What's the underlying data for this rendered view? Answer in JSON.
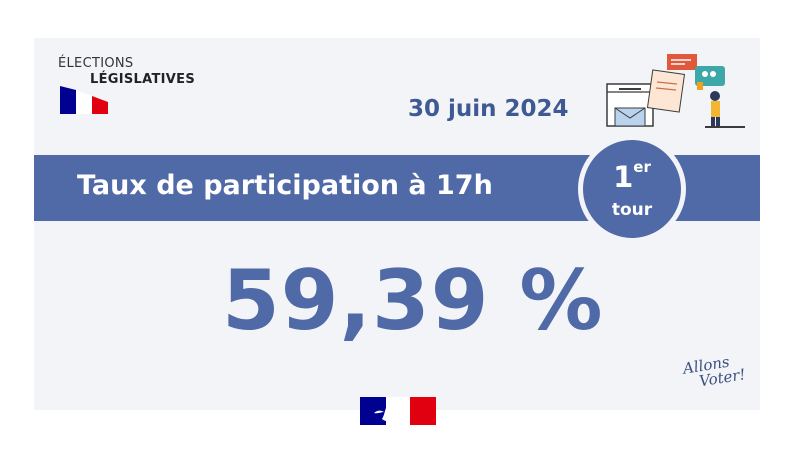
{
  "logo": {
    "line1": "ÉLECTIONS",
    "line2": "LÉGISLATIVES"
  },
  "date": "30 juin 2024",
  "banner": {
    "title": "Taux de participation à 17h",
    "round_number": "1",
    "round_suffix": "er",
    "round_label": "tour"
  },
  "participation_value": "59,39 %",
  "slogan": {
    "line1": "Allons",
    "line2": "Voter!"
  },
  "colors": {
    "primary": "#4f6aa6",
    "date": "#3f5a93",
    "flag_blue": "#000091",
    "flag_red": "#e1000f",
    "background": "#f3f4f8"
  },
  "icons": [
    "french-flag-icon",
    "ballot-box-illustration-icon",
    "marianne-republique-logo-icon"
  ]
}
